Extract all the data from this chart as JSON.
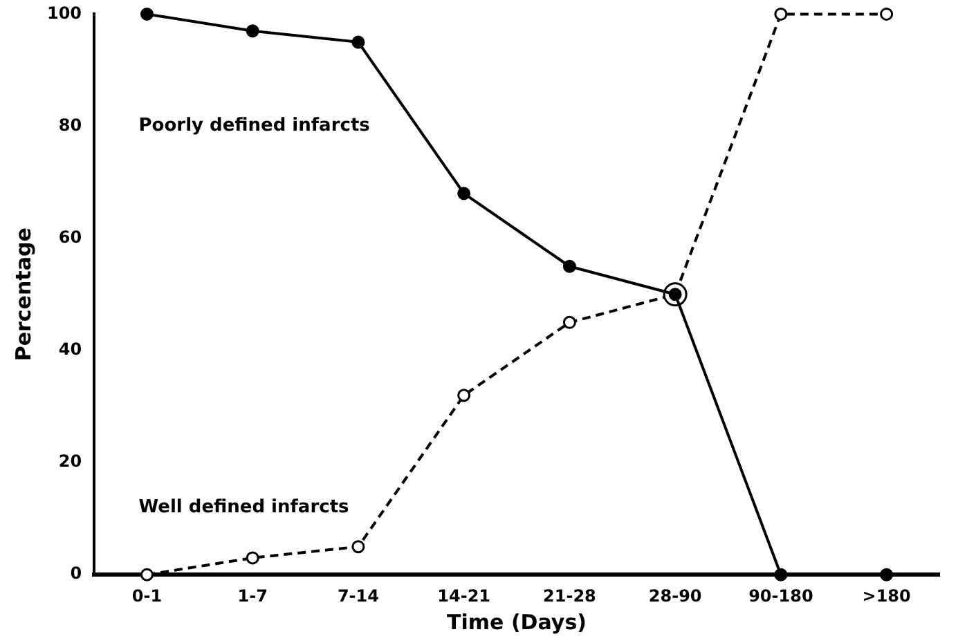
{
  "chart_data": {
    "type": "line",
    "xlabel": "Time (Days)",
    "ylabel": "Percentage",
    "categories": [
      "0-1",
      "1-7",
      "7-14",
      "14-21",
      "21-28",
      "28-90",
      "90-180",
      ">180"
    ],
    "series": [
      {
        "name": "Poorly defined infarcts",
        "color": "#000000",
        "line_style": "solid",
        "values": [
          100,
          97,
          95,
          68,
          55,
          50,
          0,
          0
        ]
      },
      {
        "name": "Well defined infarcts",
        "color": "#000000",
        "line_style": "dashed",
        "values": [
          0,
          3,
          5,
          32,
          45,
          50,
          100,
          100
        ]
      }
    ],
    "ylim": [
      0,
      100
    ],
    "yticks": [
      0,
      20,
      40,
      60,
      80,
      100
    ],
    "grid": false,
    "legend": false,
    "marker": "circle"
  }
}
